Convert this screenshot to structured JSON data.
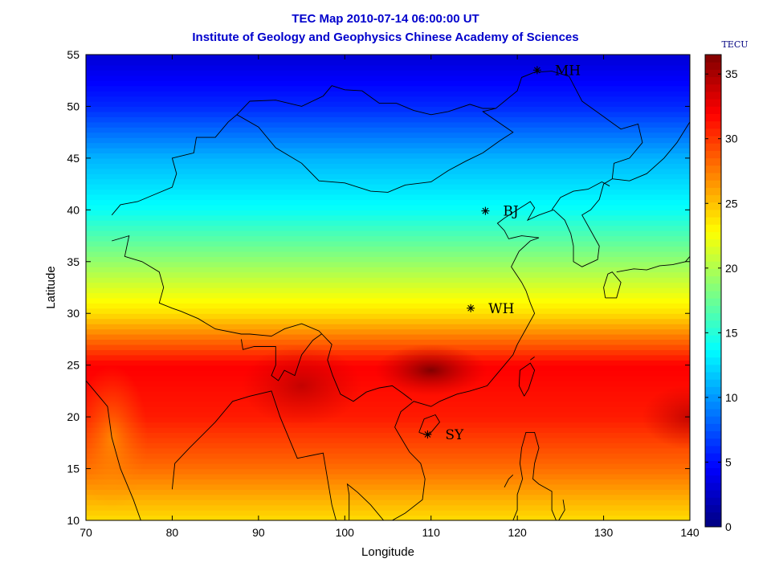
{
  "chart_data": {
    "type": "heatmap",
    "title": "TEC Map 2010-07-14 06:00:00 UT",
    "subtitle": "Institute of Geology and Geophysics Chinese Academy of Sciences",
    "xlabel": "Longitude",
    "ylabel": "Latitude",
    "xlim": [
      70,
      140
    ],
    "ylim": [
      10,
      55
    ],
    "x_ticks": [
      "70",
      "80",
      "90",
      "100",
      "110",
      "120",
      "130",
      "140"
    ],
    "y_ticks": [
      "10",
      "15",
      "20",
      "25",
      "30",
      "35",
      "40",
      "45",
      "50",
      "55"
    ],
    "colorbar": {
      "label": "TECU",
      "range": [
        0,
        36.5
      ],
      "ticks": [
        "0",
        "5",
        "10",
        "15",
        "20",
        "25",
        "30",
        "35"
      ],
      "colormap": "jet"
    },
    "tec_profile_by_latitude": [
      {
        "lat": 55,
        "tec": 3
      },
      {
        "lat": 50,
        "tec": 6
      },
      {
        "lat": 45,
        "tec": 11
      },
      {
        "lat": 40,
        "tec": 14
      },
      {
        "lat": 35,
        "tec": 19
      },
      {
        "lat": 30,
        "tec": 24
      },
      {
        "lat": 25,
        "tec": 32
      },
      {
        "lat": 20,
        "tec": 31
      },
      {
        "lat": 15,
        "tec": 28
      },
      {
        "lat": 10,
        "tec": 24
      }
    ],
    "peak": {
      "lon": 110,
      "lat": 24.5,
      "tec": 36
    },
    "stations": [
      {
        "name": "MH",
        "lon": 122.3,
        "lat": 53.5
      },
      {
        "name": "BJ",
        "lon": 116.3,
        "lat": 39.9
      },
      {
        "name": "WH",
        "lon": 114.6,
        "lat": 30.5
      },
      {
        "name": "SY",
        "lon": 109.6,
        "lat": 18.3
      }
    ]
  }
}
